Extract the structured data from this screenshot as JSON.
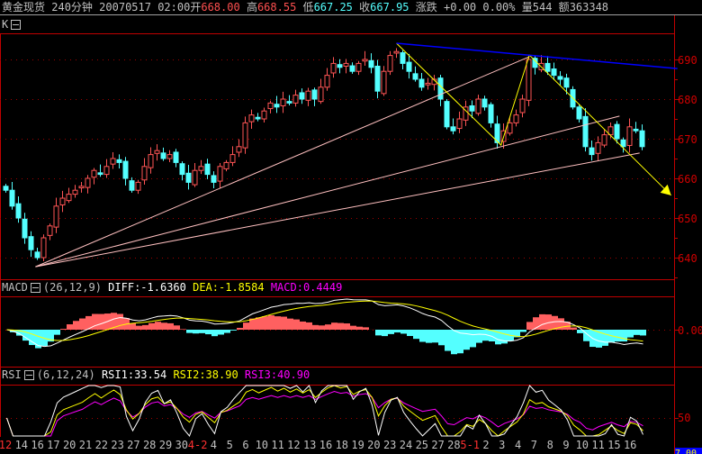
{
  "header": {
    "symbol": "黄金现货",
    "period": "240分钟",
    "datetime": "20070517 02:00",
    "open_label": "开",
    "open": "668.00",
    "high_label": "高",
    "high": "668.55",
    "low_label": "低",
    "low": "667.25",
    "close_label": "收",
    "close": "667.95",
    "change_label": "涨跌",
    "change": "+0.00 0.00%",
    "volume_label": "量",
    "volume": "544",
    "amount_label": "额",
    "amount": "363348"
  },
  "kpanel": {
    "label": "K",
    "yticks": [
      "690",
      "680",
      "670",
      "660",
      "650",
      "640"
    ],
    "ytick_values": [
      690,
      680,
      670,
      660,
      650,
      640
    ]
  },
  "macd": {
    "label": "MACD",
    "params": "(26,12,9)",
    "diff": "DIFF:-1.6360",
    "dea": "DEA:-1.8584",
    "macd": "MACD:0.4449",
    "ytick": "0.00"
  },
  "rsi": {
    "label": "RSI",
    "params": "(6,12,24)",
    "rsi1": "RSI1:33.54",
    "rsi2": "RSI2:38.90",
    "rsi3": "RSI3:40.90",
    "ytick": "50"
  },
  "corner_value": "7.00",
  "dates": [
    {
      "t": "12",
      "hl": true
    },
    {
      "t": "14"
    },
    {
      "t": "16"
    },
    {
      "t": "17"
    },
    {
      "t": "20"
    },
    {
      "t": "21"
    },
    {
      "t": "22"
    },
    {
      "t": "23"
    },
    {
      "t": "27"
    },
    {
      "t": "28"
    },
    {
      "t": "29"
    },
    {
      "t": "30"
    },
    {
      "t": "4-2",
      "hl": true
    },
    {
      "t": "4"
    },
    {
      "t": "5"
    },
    {
      "t": "6"
    },
    {
      "t": "10"
    },
    {
      "t": "11"
    },
    {
      "t": "12"
    },
    {
      "t": "13"
    },
    {
      "t": "16"
    },
    {
      "t": "18"
    },
    {
      "t": "19"
    },
    {
      "t": "20"
    },
    {
      "t": "23"
    },
    {
      "t": "24"
    },
    {
      "t": "25"
    },
    {
      "t": "27"
    },
    {
      "t": "28"
    },
    {
      "t": "5-1",
      "hl": true
    },
    {
      "t": "2"
    },
    {
      "t": "3"
    },
    {
      "t": "4"
    },
    {
      "t": "7"
    },
    {
      "t": "8"
    },
    {
      "t": "9"
    },
    {
      "t": "10"
    },
    {
      "t": "11"
    },
    {
      "t": "15"
    },
    {
      "t": "16"
    }
  ],
  "colors": {
    "up": "#ff5555",
    "down": "#54ffff",
    "axis": "#c00000",
    "diff": "#ffffff",
    "dea": "#ffff00",
    "rsi1": "#ffffff",
    "rsi2": "#ffff00",
    "rsi3": "#ff00ff",
    "fan": "#ffc0c0",
    "zigzag": "#ffff00",
    "channel": "#0000ff"
  },
  "chart_data": {
    "type": "candlestick",
    "closes": [
      657,
      653,
      650,
      645,
      642,
      640,
      645,
      648,
      653,
      655,
      656,
      657,
      658,
      660,
      662,
      661,
      663,
      665,
      664,
      660,
      657,
      659,
      663,
      666,
      667,
      665,
      666,
      664,
      661,
      659,
      662,
      663,
      661,
      659,
      663,
      664,
      666,
      668,
      674,
      676,
      675,
      677,
      679,
      678,
      680,
      679,
      681,
      680,
      682,
      680,
      683,
      686,
      689,
      688,
      689,
      687,
      689,
      690,
      688,
      682,
      687,
      691,
      692,
      689,
      687,
      685,
      683,
      684,
      685,
      680,
      673,
      672,
      675,
      678,
      677,
      680,
      678,
      674,
      669,
      672,
      674,
      676,
      680,
      690,
      688,
      689,
      687,
      686,
      685,
      683,
      678,
      675,
      668,
      666,
      669,
      671,
      673,
      670,
      668,
      673,
      672,
      668
    ],
    "ylim": [
      636,
      696
    ],
    "drawings": [
      {
        "kind": "fan",
        "points": [
          [
            4.7,
            637.7
          ],
          [
            83.1,
            690.7
          ]
        ]
      },
      {
        "kind": "fan",
        "points": [
          [
            4.7,
            637.7
          ],
          [
            97.4,
            675.7
          ]
        ]
      },
      {
        "kind": "fan",
        "points": [
          [
            4.7,
            637.7
          ],
          [
            100.6,
            666.4
          ]
        ]
      },
      {
        "kind": "zigzag",
        "points": [
          [
            62,
            694.1
          ],
          [
            78.6,
            668.4
          ],
          [
            83.1,
            691.1
          ],
          [
            105.6,
            655.7
          ]
        ]
      },
      {
        "kind": "channel",
        "points": [
          [
            62,
            694.1
          ],
          [
            106.6,
            687.7
          ]
        ]
      }
    ]
  }
}
